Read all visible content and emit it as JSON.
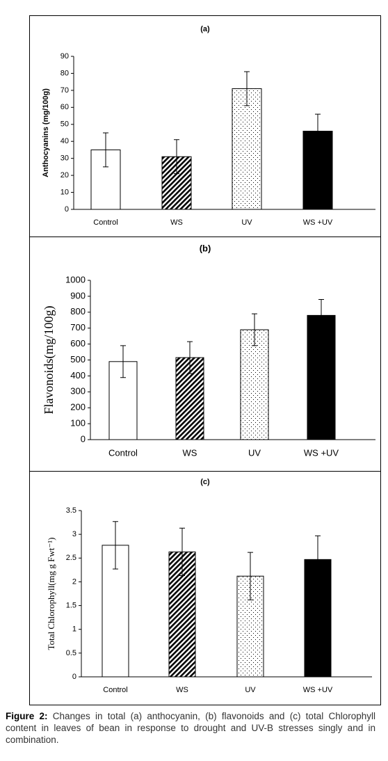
{
  "chart_data": [
    {
      "type": "bar",
      "title": "(a)",
      "ylabel": "Anthocyanins (mg/100g)",
      "categories": [
        "Control",
        "WS",
        "UV",
        "WS +UV"
      ],
      "values": [
        35,
        31,
        71,
        46
      ],
      "errors": [
        10,
        10,
        10,
        10
      ],
      "patterns": [
        "none",
        "diagonal",
        "dots",
        "solid"
      ],
      "ylim": [
        0,
        90
      ],
      "yticks": [
        0,
        10,
        20,
        30,
        40,
        50,
        60,
        70,
        80,
        90
      ]
    },
    {
      "type": "bar",
      "title": "(b)",
      "ylabel": "Flavonoids(mg/100g)",
      "categories": [
        "Control",
        "WS",
        "UV",
        "WS +UV"
      ],
      "values": [
        490,
        515,
        690,
        780
      ],
      "errors": [
        100,
        100,
        100,
        100
      ],
      "patterns": [
        "none",
        "diagonal",
        "dots",
        "solid"
      ],
      "ylim": [
        0,
        1000
      ],
      "yticks": [
        0,
        100,
        200,
        300,
        400,
        500,
        600,
        700,
        800,
        900,
        1000
      ]
    },
    {
      "type": "bar",
      "title": "(c)",
      "ylabel": "Total Chlorophyll(mg g Fwt⁻¹)",
      "categories": [
        "Control",
        "WS",
        "UV",
        "WS +UV"
      ],
      "values": [
        2.77,
        2.63,
        2.12,
        2.47
      ],
      "errors": [
        0.5,
        0.5,
        0.5,
        0.5
      ],
      "patterns": [
        "none",
        "diagonal",
        "dots",
        "solid"
      ],
      "ylim": [
        0,
        3.5
      ],
      "yticks": [
        0,
        0.5,
        1,
        1.5,
        2,
        2.5,
        3,
        3.5
      ]
    }
  ],
  "caption": {
    "label": "Figure 2:",
    "text": "Changes in total (a) anthocyanin, (b) flavonoids and (c) total Chlorophyll content in leaves of bean in response to drought and UV-B stresses singly and in combination."
  }
}
